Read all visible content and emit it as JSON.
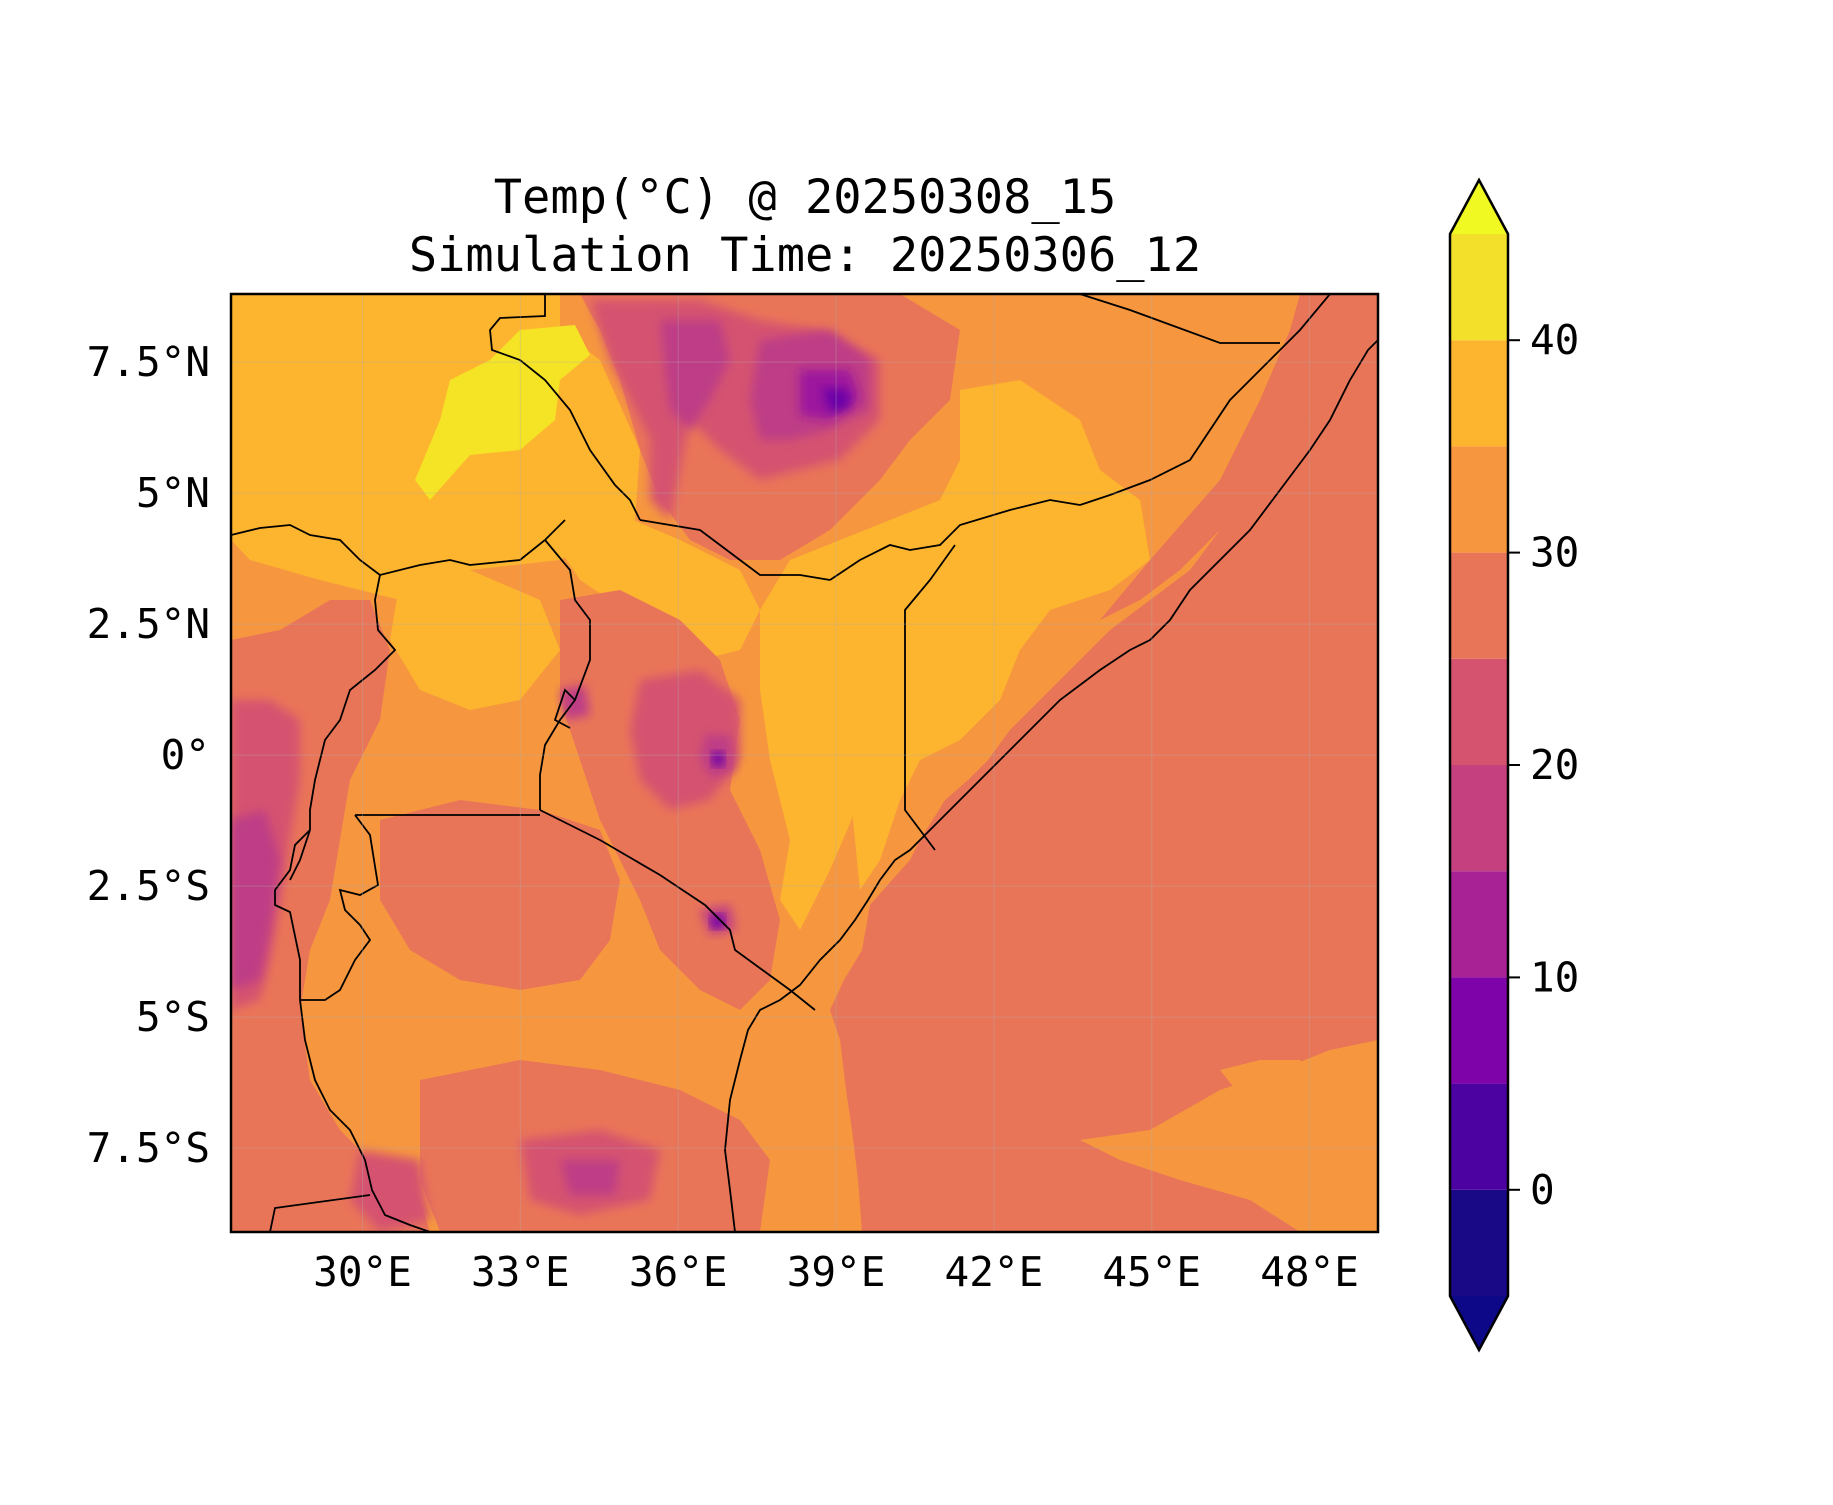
{
  "title_line1": "Temp(°C) @ 20250308_15",
  "title_line2": "Simulation Time: 20250306_12",
  "map": {
    "lon_range": [
      27.5,
      49.3
    ],
    "lat_range": [
      -9.1,
      8.8
    ],
    "x_ticks": [
      {
        "lon": 30,
        "label": "30°E"
      },
      {
        "lon": 33,
        "label": "33°E"
      },
      {
        "lon": 36,
        "label": "36°E"
      },
      {
        "lon": 39,
        "label": "39°E"
      },
      {
        "lon": 42,
        "label": "42°E"
      },
      {
        "lon": 45,
        "label": "45°E"
      },
      {
        "lon": 48,
        "label": "48°E"
      }
    ],
    "y_ticks": [
      {
        "lat": 7.5,
        "label": "7.5°N"
      },
      {
        "lat": 5,
        "label": "5°N"
      },
      {
        "lat": 2.5,
        "label": "2.5°N"
      },
      {
        "lat": 0,
        "label": "0°"
      },
      {
        "lat": -2.5,
        "label": "2.5°S"
      },
      {
        "lat": -5,
        "label": "5°S"
      },
      {
        "lat": -7.5,
        "label": "7.5°S"
      }
    ],
    "gridlines": true,
    "colors": {
      "ocean": "#e97558",
      "land": "#f6973f",
      "hot": "#fdb42f",
      "hottest": "#f5e325",
      "cool": "#d5536f",
      "cooler": "#be3d86",
      "cold": "#9c179e",
      "coldest": "#6a00a8",
      "border": "#000000"
    }
  },
  "colorbar": {
    "range": [
      -5,
      45
    ],
    "levels": [
      -5,
      0,
      5,
      10,
      15,
      20,
      25,
      30,
      35,
      40,
      45
    ],
    "colors": [
      "#1a0987",
      "#4b02a1",
      "#7e03a8",
      "#a82296",
      "#c5407e",
      "#d5536f",
      "#e97558",
      "#f6973f",
      "#fdb42f",
      "#f3e02a"
    ],
    "under_color": "#0d0887",
    "over_color": "#f0f921",
    "ticks": [
      {
        "value": 0,
        "label": "0"
      },
      {
        "value": 10,
        "label": "10"
      },
      {
        "value": 20,
        "label": "20"
      },
      {
        "value": 30,
        "label": "30"
      },
      {
        "value": 40,
        "label": "40"
      }
    ]
  }
}
